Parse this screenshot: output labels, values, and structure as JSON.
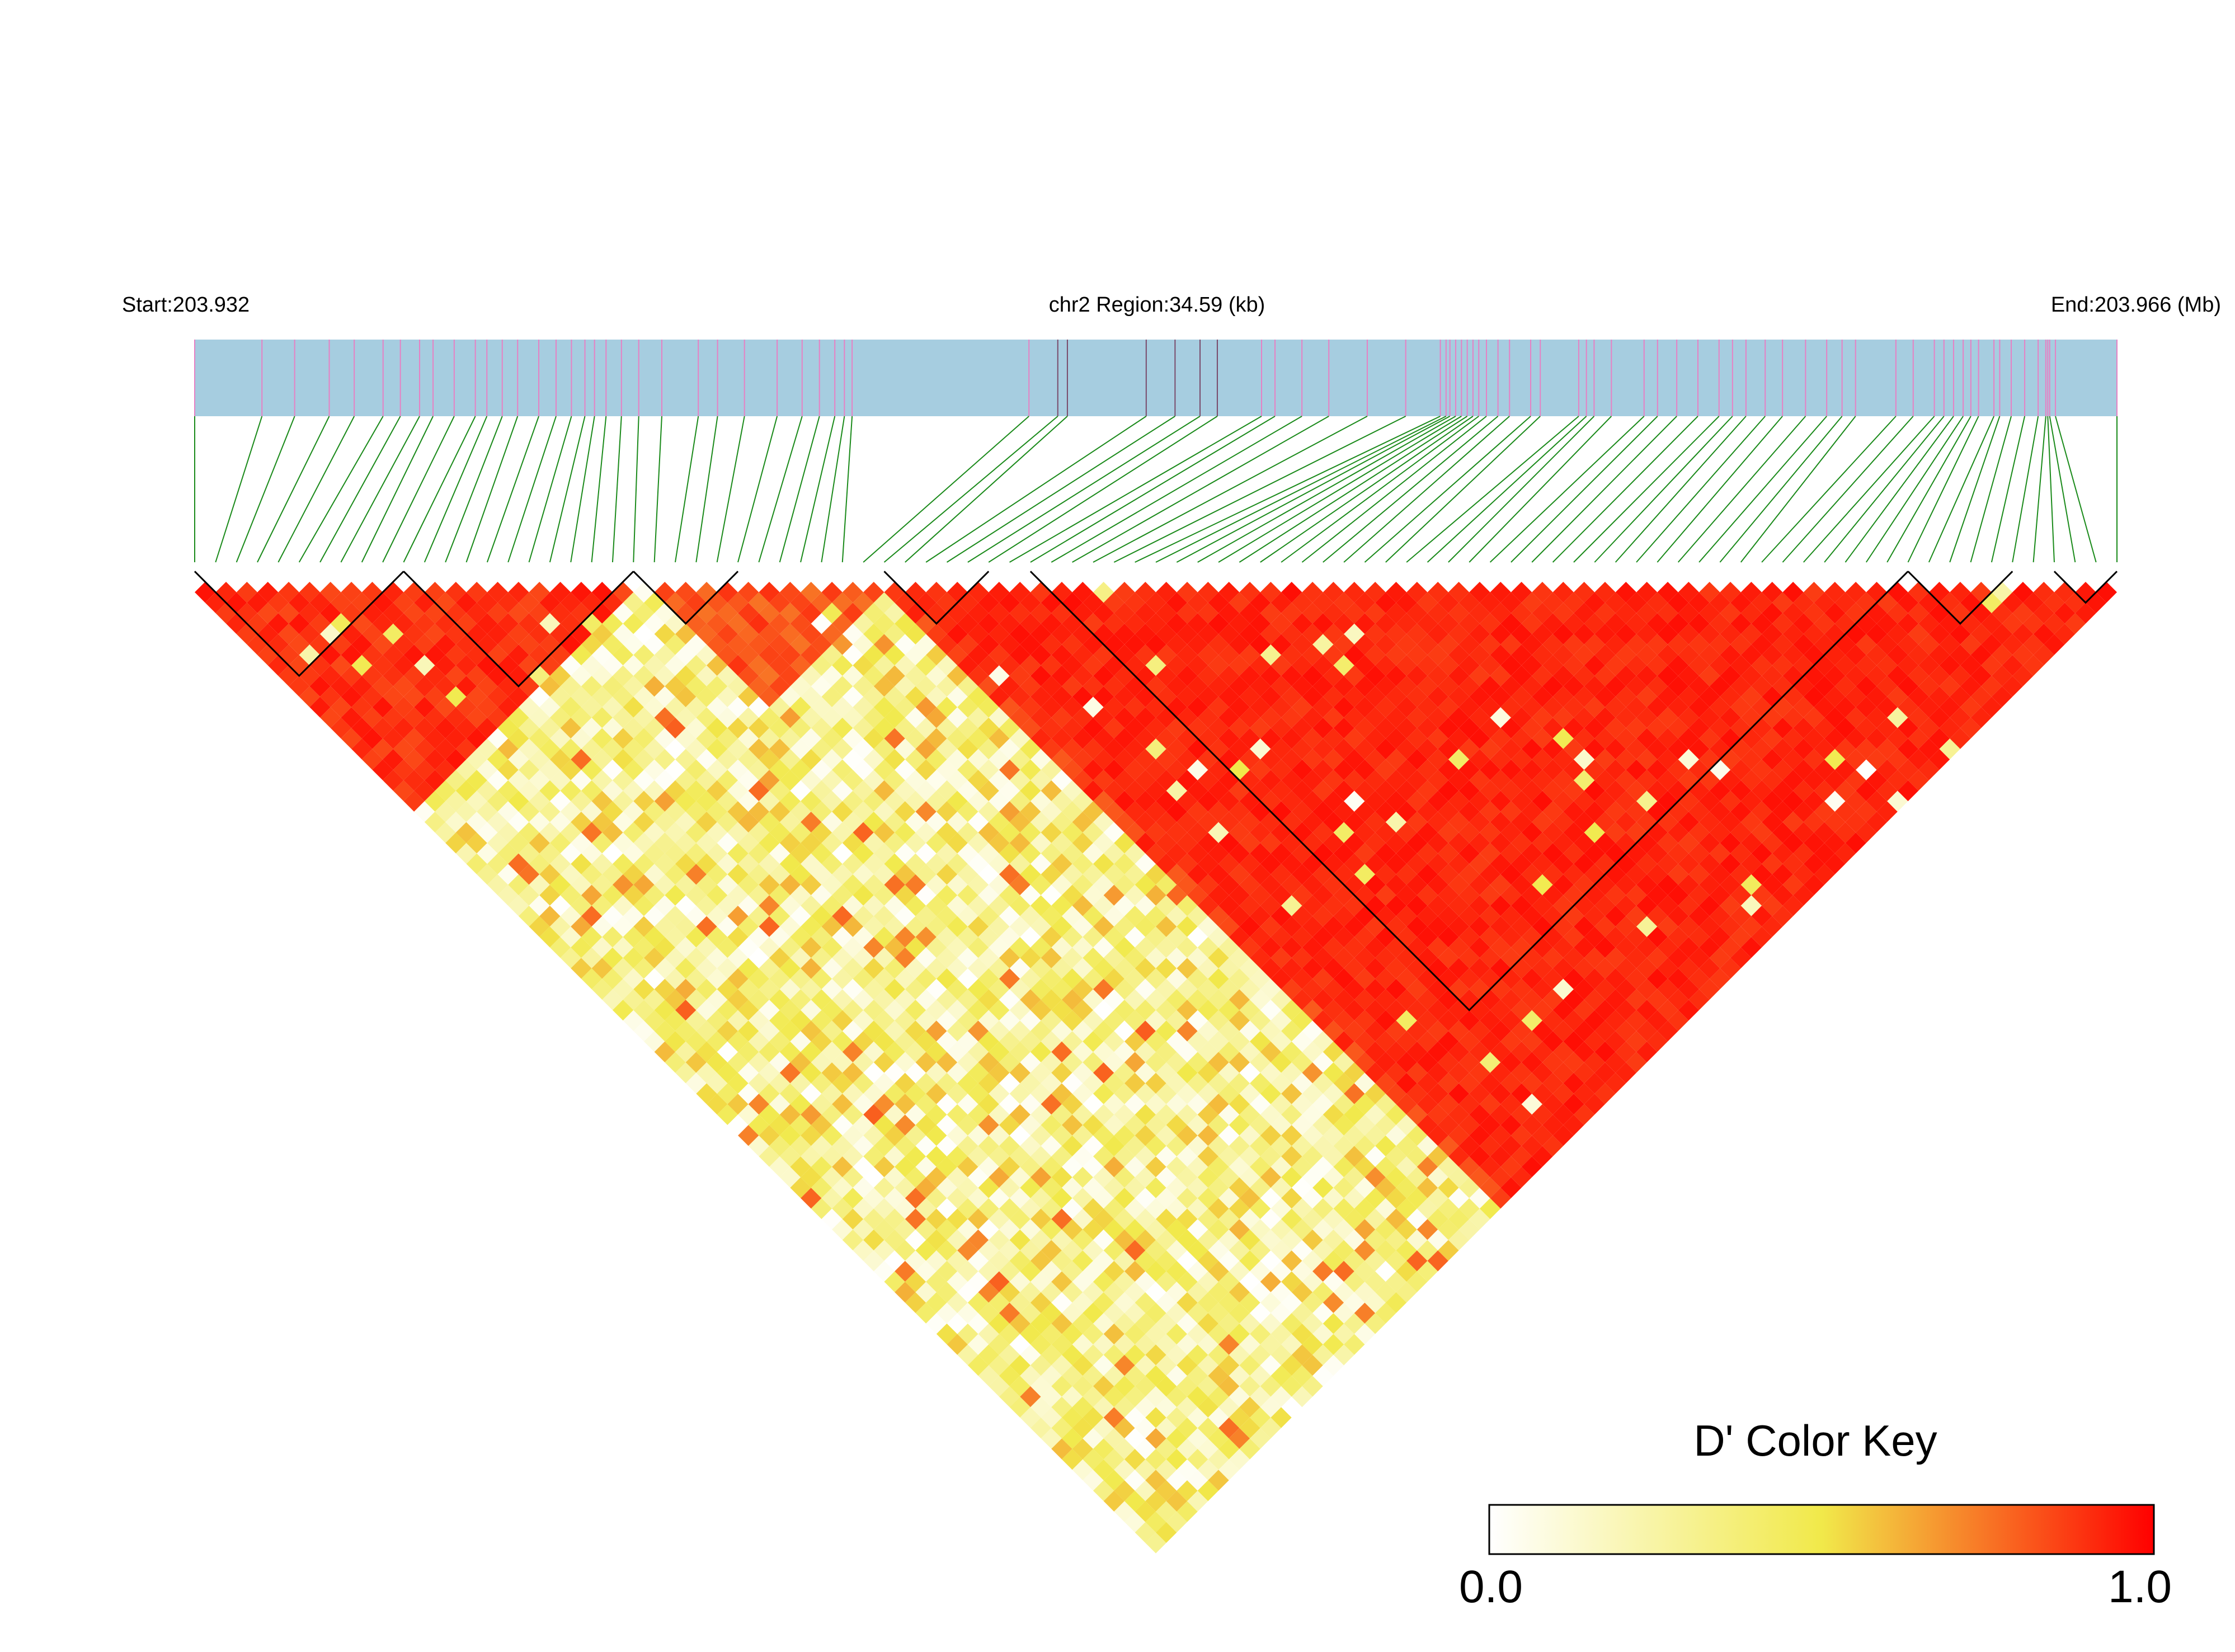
{
  "chart_data": {
    "type": "heatmap",
    "subtype": "LD block triangle (Haploview-style D' plot)",
    "region": {
      "start_label": "Start:203.932",
      "middle_label": "chr2 Region:34.59 (kb)",
      "end_label": "End:203.966 (Mb)",
      "chromosome": "chr2",
      "start_mb": 203.932,
      "end_mb": 203.966,
      "length_kb": 34.59
    },
    "snp_count": 93,
    "snp_positions_fraction": [
      0.0,
      0.035,
      0.052,
      0.07,
      0.083,
      0.098,
      0.107,
      0.117,
      0.124,
      0.135,
      0.146,
      0.152,
      0.16,
      0.168,
      0.179,
      0.188,
      0.196,
      0.203,
      0.208,
      0.214,
      0.222,
      0.231,
      0.243,
      0.262,
      0.272,
      0.286,
      0.303,
      0.316,
      0.325,
      0.333,
      0.338,
      0.342,
      0.434,
      0.449,
      0.454,
      0.495,
      0.51,
      0.523,
      0.532,
      0.555,
      0.562,
      0.576,
      0.59,
      0.61,
      0.63,
      0.648,
      0.651,
      0.653,
      0.656,
      0.659,
      0.662,
      0.665,
      0.668,
      0.672,
      0.678,
      0.684,
      0.695,
      0.7,
      0.72,
      0.724,
      0.728,
      0.737,
      0.754,
      0.761,
      0.771,
      0.782,
      0.793,
      0.8,
      0.807,
      0.817,
      0.826,
      0.838,
      0.849,
      0.857,
      0.864,
      0.885,
      0.894,
      0.905,
      0.91,
      0.915,
      0.92,
      0.924,
      0.928,
      0.936,
      0.939,
      0.945,
      0.952,
      0.959,
      0.963,
      0.964,
      0.965,
      0.968,
      1.0
    ],
    "snp_marker_colors": {
      "default": "#e681c4",
      "dark": "#7a4a6a"
    },
    "blocks": [
      {
        "from_snp": 0,
        "to_snp": 10
      },
      {
        "from_snp": 10,
        "to_snp": 21
      },
      {
        "from_snp": 21,
        "to_snp": 26
      },
      {
        "from_snp": 33,
        "to_snp": 38
      },
      {
        "from_snp": 40,
        "to_snp": 82
      },
      {
        "from_snp": 82,
        "to_snp": 87
      },
      {
        "from_snp": 89,
        "to_snp": 92
      }
    ],
    "region_pattern": [
      {
        "from": 0,
        "to": 21,
        "base": 0.96,
        "spread": 0.12
      },
      {
        "from": 21,
        "to": 33,
        "base": 0.9,
        "spread": 0.15
      },
      {
        "from": 33,
        "to": 92,
        "base": 0.97,
        "spread": 0.1
      }
    ],
    "cross_region_value": 0.3,
    "cross_region_spread": 0.3,
    "scale": {
      "min": 0.0,
      "max": 1.0,
      "colors": [
        "#ffffff",
        "#f1e94a",
        "#ff0000"
      ],
      "mid_stop": 0.5
    },
    "colors": {
      "snp_track": "#a6cde0",
      "connector": "#1a8a1a",
      "block_outline": "#000000"
    },
    "color_key": {
      "title": "D' Color Key",
      "min_label": "0.0",
      "max_label": "1.0"
    },
    "grid": false,
    "legend_position": "bottom-right"
  }
}
